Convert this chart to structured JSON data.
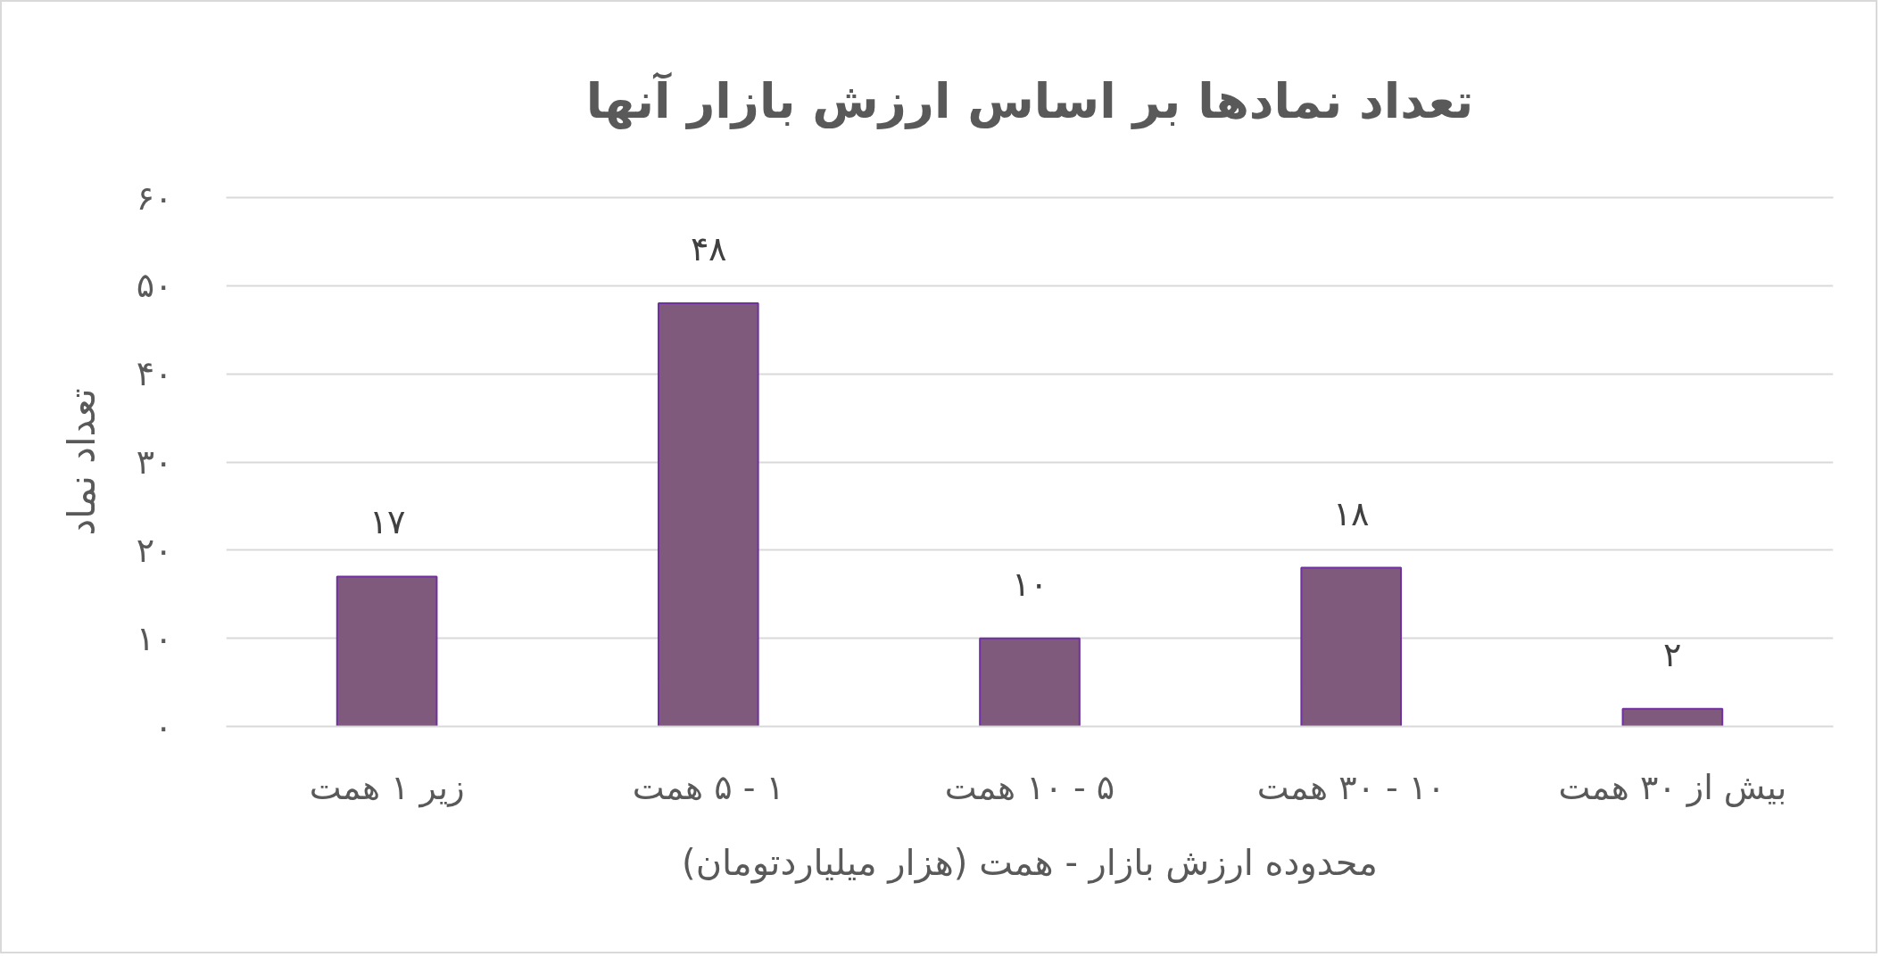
{
  "chart_data": {
    "type": "bar",
    "title": "تعداد نمادها بر اساس ارزش بازار آنها",
    "xlabel": "محدوده ارزش بازار - همت (هزار میلیاردتومان)",
    "ylabel": "تعداد نماد",
    "categories": [
      "زیر ۱ همت",
      "۱ - ۵ همت",
      "۵ - ۱۰ همت",
      "۱۰ - ۳۰ همت",
      "بیش از ۳۰ همت"
    ],
    "values": [
      17,
      48,
      10,
      18,
      2
    ],
    "color": "#7f5a7c",
    "value_labels": [
      "۱۷",
      "۴۸",
      "۱۰",
      "۱۸",
      "۲"
    ],
    "ylim": [
      0,
      60
    ],
    "yticks": [
      {
        "value": 0,
        "label": "۰"
      },
      {
        "value": 10,
        "label": "۱۰"
      },
      {
        "value": 20,
        "label": "۲۰"
      },
      {
        "value": 30,
        "label": "۳۰"
      },
      {
        "value": 40,
        "label": "۴۰"
      },
      {
        "value": 50,
        "label": "۵۰"
      },
      {
        "value": 60,
        "label": "۶۰"
      }
    ],
    "grid": "y"
  }
}
